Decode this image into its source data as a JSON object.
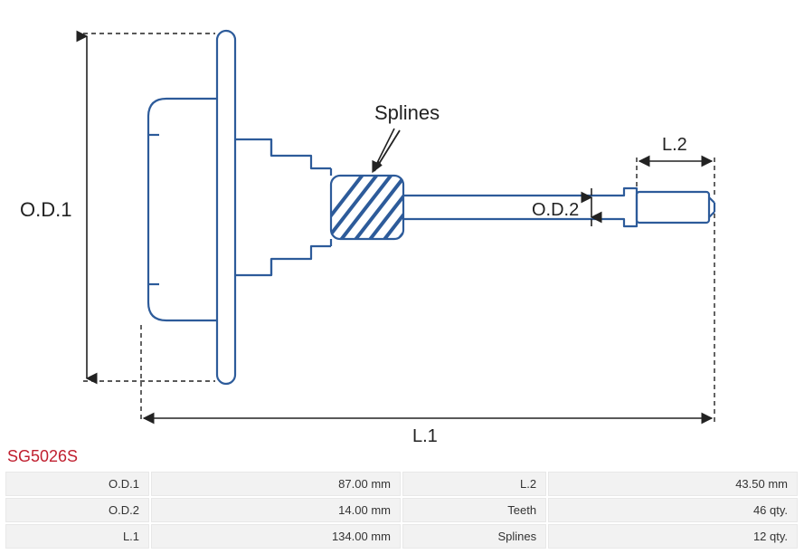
{
  "part_id": "SG5026S",
  "diagram": {
    "type": "technical-drawing",
    "stroke_color": "#2d5b9a",
    "stroke_width": 2.2,
    "hatch_color": "#2d5b9a",
    "dash_pattern": "5,4",
    "arrow_color": "#222222",
    "text_color": "#222222",
    "labels": {
      "splines": "Splines",
      "od1": "O.D.1",
      "od2": "O.D.2",
      "l1": "L.1",
      "l2": "L.2"
    }
  },
  "specs": {
    "rows": [
      {
        "k1": "O.D.1",
        "v1": "87.00 mm",
        "k2": "L.2",
        "v2": "43.50 mm"
      },
      {
        "k1": "O.D.2",
        "v1": "14.00 mm",
        "k2": "Teeth",
        "v2": "46 qty."
      },
      {
        "k1": "L.1",
        "v1": "134.00 mm",
        "k2": "Splines",
        "v2": "12 qty."
      }
    ]
  },
  "colors": {
    "part_id": "#c02030",
    "table_bg": "#f2f2f2",
    "table_border": "#e8e8e8",
    "page_bg": "#ffffff"
  }
}
